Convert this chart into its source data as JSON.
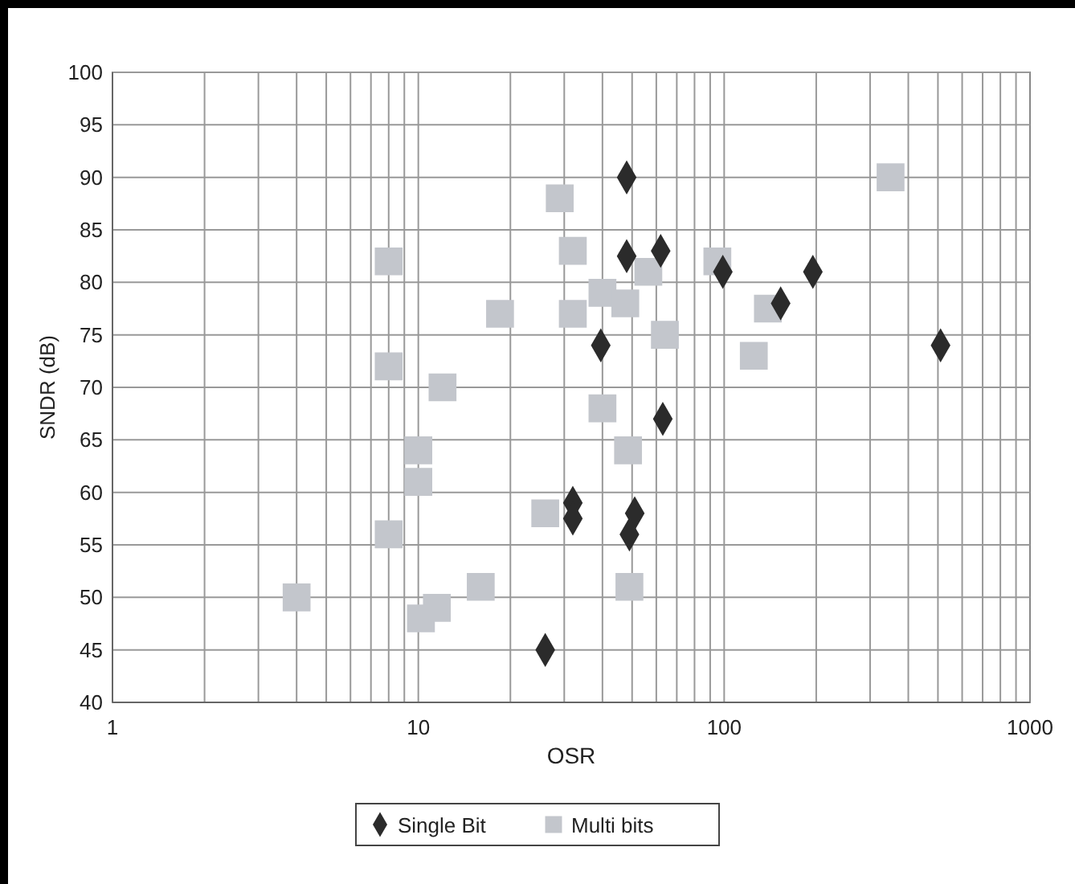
{
  "chart_data": {
    "type": "scatter",
    "xlabel": "OSR",
    "ylabel": "SNDR (dB)",
    "log": "x",
    "grid": true,
    "legend": "bottom",
    "xlim": [
      1,
      1000
    ],
    "xticks": [
      1,
      10,
      100,
      1000
    ],
    "ylim": [
      40,
      100
    ],
    "yticks": [
      40,
      45,
      50,
      55,
      60,
      65,
      70,
      75,
      80,
      85,
      90,
      95,
      100
    ],
    "series": [
      {
        "name": "Single Bit",
        "color": "#2b2b2b",
        "marker": "diamond",
        "x": [
          26,
          32,
          32,
          39.5,
          48,
          48,
          62,
          63,
          51,
          49,
          99,
          153,
          195,
          510
        ],
        "values": [
          45,
          59,
          57.5,
          74,
          90,
          82.5,
          83,
          67,
          58,
          56,
          81,
          78,
          81,
          74
        ]
      },
      {
        "name": "Multi bits",
        "color": "#c3c6cc",
        "marker": "square",
        "x": [
          4,
          8,
          8,
          8,
          10,
          10,
          10.2,
          11.5,
          12,
          16,
          18.5,
          26,
          29,
          32,
          32,
          40,
          40,
          47.5,
          48.5,
          49,
          56.5,
          64,
          95,
          125,
          139,
          350
        ],
        "values": [
          50,
          82,
          72,
          56,
          64,
          61,
          48,
          49,
          70,
          51,
          77,
          58,
          88,
          83,
          77,
          79,
          68,
          78,
          64,
          51,
          81,
          75,
          82,
          73,
          77.5,
          90
        ]
      }
    ]
  }
}
